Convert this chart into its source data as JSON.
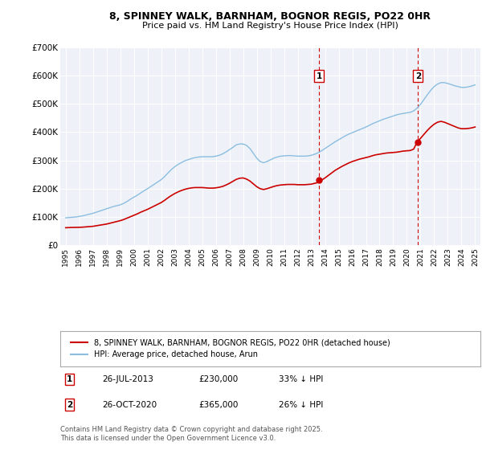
{
  "title": "8, SPINNEY WALK, BARNHAM, BOGNOR REGIS, PO22 0HR",
  "subtitle": "Price paid vs. HM Land Registry's House Price Index (HPI)",
  "hpi_color": "#8bbde0",
  "price_color": "#cc0000",
  "vline_color": "#cc0000",
  "plot_bg": "#eef2f8",
  "ylim": [
    0,
    700000
  ],
  "yticks": [
    0,
    100000,
    200000,
    300000,
    400000,
    500000,
    600000,
    700000
  ],
  "ytick_labels": [
    "£0",
    "£100K",
    "£200K",
    "£300K",
    "£400K",
    "£500K",
    "£600K",
    "£700K"
  ],
  "xlim_start": 1994.6,
  "xlim_end": 2025.4,
  "marker1_x": 2013.57,
  "marker1_y": 230000,
  "marker2_x": 2020.82,
  "marker2_y": 365000,
  "legend_line1": "8, SPINNEY WALK, BARNHAM, BOGNOR REGIS, PO22 0HR (detached house)",
  "legend_line2": "HPI: Average price, detached house, Arun",
  "table_row1": [
    "1",
    "26-JUL-2013",
    "£230,000",
    "33% ↓ HPI"
  ],
  "table_row2": [
    "2",
    "26-OCT-2020",
    "£365,000",
    "26% ↓ HPI"
  ],
  "footer": "Contains HM Land Registry data © Crown copyright and database right 2025.\nThis data is licensed under the Open Government Licence v3.0.",
  "hpi_data_years": [
    1995.0,
    1995.25,
    1995.5,
    1995.75,
    1996.0,
    1996.25,
    1996.5,
    1996.75,
    1997.0,
    1997.25,
    1997.5,
    1997.75,
    1998.0,
    1998.25,
    1998.5,
    1998.75,
    1999.0,
    1999.25,
    1999.5,
    1999.75,
    2000.0,
    2000.25,
    2000.5,
    2000.75,
    2001.0,
    2001.25,
    2001.5,
    2001.75,
    2002.0,
    2002.25,
    2002.5,
    2002.75,
    2003.0,
    2003.25,
    2003.5,
    2003.75,
    2004.0,
    2004.25,
    2004.5,
    2004.75,
    2005.0,
    2005.25,
    2005.5,
    2005.75,
    2006.0,
    2006.25,
    2006.5,
    2006.75,
    2007.0,
    2007.25,
    2007.5,
    2007.75,
    2008.0,
    2008.25,
    2008.5,
    2008.75,
    2009.0,
    2009.25,
    2009.5,
    2009.75,
    2010.0,
    2010.25,
    2010.5,
    2010.75,
    2011.0,
    2011.25,
    2011.5,
    2011.75,
    2012.0,
    2012.25,
    2012.5,
    2012.75,
    2013.0,
    2013.25,
    2013.5,
    2013.75,
    2014.0,
    2014.25,
    2014.5,
    2014.75,
    2015.0,
    2015.25,
    2015.5,
    2015.75,
    2016.0,
    2016.25,
    2016.5,
    2016.75,
    2017.0,
    2017.25,
    2017.5,
    2017.75,
    2018.0,
    2018.25,
    2018.5,
    2018.75,
    2019.0,
    2019.25,
    2019.5,
    2019.75,
    2020.0,
    2020.25,
    2020.5,
    2020.75,
    2021.0,
    2021.25,
    2021.5,
    2021.75,
    2022.0,
    2022.25,
    2022.5,
    2022.75,
    2023.0,
    2023.25,
    2023.5,
    2023.75,
    2024.0,
    2024.25,
    2024.5,
    2024.75,
    2025.0
  ],
  "hpi_data_values": [
    97000,
    98000,
    99000,
    100000,
    102000,
    104000,
    107000,
    110000,
    113000,
    117000,
    121000,
    125000,
    129000,
    133000,
    137000,
    140000,
    143000,
    148000,
    155000,
    163000,
    170000,
    177000,
    185000,
    193000,
    200000,
    208000,
    216000,
    224000,
    232000,
    243000,
    256000,
    268000,
    278000,
    286000,
    293000,
    299000,
    303000,
    307000,
    310000,
    312000,
    313000,
    313000,
    313000,
    313000,
    315000,
    318000,
    323000,
    330000,
    338000,
    346000,
    355000,
    358000,
    358000,
    353000,
    342000,
    325000,
    308000,
    296000,
    292000,
    296000,
    302000,
    308000,
    312000,
    315000,
    316000,
    317000,
    317000,
    316000,
    315000,
    315000,
    315000,
    316000,
    318000,
    322000,
    327000,
    334000,
    342000,
    350000,
    358000,
    366000,
    373000,
    380000,
    387000,
    393000,
    398000,
    403000,
    408000,
    413000,
    418000,
    424000,
    430000,
    435000,
    440000,
    445000,
    449000,
    453000,
    457000,
    461000,
    464000,
    466000,
    468000,
    470000,
    475000,
    485000,
    498000,
    515000,
    532000,
    548000,
    561000,
    570000,
    575000,
    575000,
    572000,
    568000,
    564000,
    561000,
    558000,
    558000,
    560000,
    563000,
    567000
  ],
  "price_data_years": [
    1995.0,
    1995.25,
    1995.5,
    1995.75,
    1996.0,
    1996.25,
    1996.5,
    1996.75,
    1997.0,
    1997.25,
    1997.5,
    1997.75,
    1998.0,
    1998.25,
    1998.5,
    1998.75,
    1999.0,
    1999.25,
    1999.5,
    1999.75,
    2000.0,
    2000.25,
    2000.5,
    2000.75,
    2001.0,
    2001.25,
    2001.5,
    2001.75,
    2002.0,
    2002.25,
    2002.5,
    2002.75,
    2003.0,
    2003.25,
    2003.5,
    2003.75,
    2004.0,
    2004.25,
    2004.5,
    2004.75,
    2005.0,
    2005.25,
    2005.5,
    2005.75,
    2006.0,
    2006.25,
    2006.5,
    2006.75,
    2007.0,
    2007.25,
    2007.5,
    2007.75,
    2008.0,
    2008.25,
    2008.5,
    2008.75,
    2009.0,
    2009.25,
    2009.5,
    2009.75,
    2010.0,
    2010.25,
    2010.5,
    2010.75,
    2011.0,
    2011.25,
    2011.5,
    2011.75,
    2012.0,
    2012.25,
    2012.5,
    2012.75,
    2013.0,
    2013.25,
    2013.5,
    2013.75,
    2014.0,
    2014.25,
    2014.5,
    2014.75,
    2015.0,
    2015.25,
    2015.5,
    2015.75,
    2016.0,
    2016.25,
    2016.5,
    2016.75,
    2017.0,
    2017.25,
    2017.5,
    2017.75,
    2018.0,
    2018.25,
    2018.5,
    2018.75,
    2019.0,
    2019.25,
    2019.5,
    2019.75,
    2020.0,
    2020.25,
    2020.5,
    2020.75,
    2021.0,
    2021.25,
    2021.5,
    2021.75,
    2022.0,
    2022.25,
    2022.5,
    2022.75,
    2023.0,
    2023.25,
    2023.5,
    2023.75,
    2024.0,
    2024.25,
    2024.5,
    2024.75,
    2025.0
  ],
  "price_data_values": [
    62000,
    62500,
    63000,
    63200,
    63500,
    64000,
    65000,
    66000,
    67000,
    69000,
    71000,
    73000,
    75000,
    78000,
    81000,
    84000,
    87000,
    91000,
    96000,
    101000,
    106000,
    111000,
    117000,
    122000,
    127000,
    133000,
    139000,
    145000,
    151000,
    159000,
    168000,
    176000,
    183000,
    189000,
    194000,
    198000,
    201000,
    203000,
    204000,
    204000,
    204000,
    203000,
    202000,
    202000,
    203000,
    205000,
    208000,
    213000,
    219000,
    226000,
    233000,
    237000,
    238000,
    234000,
    227000,
    217000,
    207000,
    200000,
    197000,
    200000,
    204000,
    208000,
    211000,
    213000,
    214000,
    215000,
    215000,
    215000,
    214000,
    214000,
    214000,
    215000,
    216000,
    219000,
    222000,
    230000,
    238000,
    247000,
    256000,
    265000,
    272000,
    279000,
    285000,
    291000,
    296000,
    300000,
    304000,
    307000,
    310000,
    313000,
    317000,
    320000,
    322000,
    324000,
    326000,
    327000,
    328000,
    329000,
    331000,
    333000,
    334000,
    335000,
    340000,
    365000,
    378000,
    392000,
    406000,
    418000,
    428000,
    435000,
    438000,
    435000,
    430000,
    425000,
    420000,
    415000,
    412000,
    412000,
    413000,
    415000,
    418000
  ]
}
